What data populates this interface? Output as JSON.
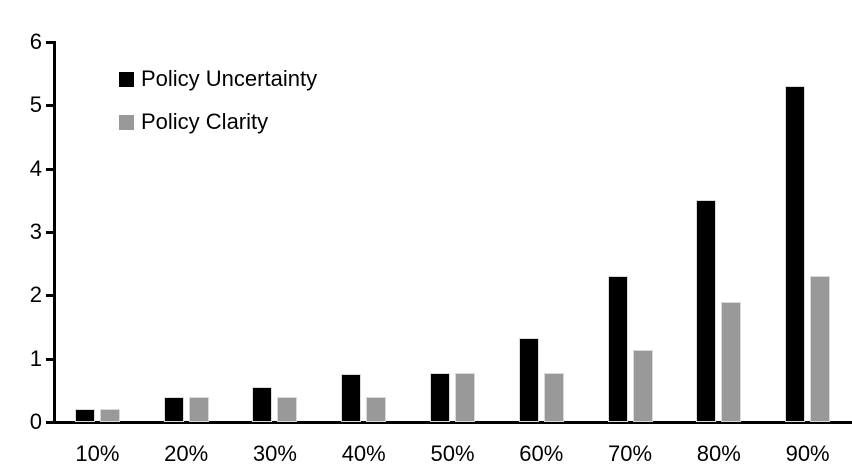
{
  "chart_data": {
    "type": "bar",
    "title": "",
    "xlabel": "",
    "ylabel": "",
    "categories": [
      "10%",
      "20%",
      "30%",
      "40%",
      "50%",
      "60%",
      "70%",
      "80%",
      "90%"
    ],
    "series": [
      {
        "name": "Policy Uncertainty",
        "color": "#000000",
        "values": [
          0.2,
          0.4,
          0.55,
          0.76,
          0.78,
          1.33,
          2.3,
          3.5,
          5.3
        ]
      },
      {
        "name": "Policy Clarity",
        "color": "#999999",
        "values": [
          0.2,
          0.4,
          0.4,
          0.4,
          0.78,
          0.77,
          1.13,
          1.9,
          2.3
        ]
      }
    ],
    "ylim": [
      0,
      6
    ],
    "yticks": [
      0,
      1,
      2,
      3,
      4,
      5,
      6
    ],
    "grid": false,
    "legend_position": "upper-left",
    "axis_color": "#000000",
    "background": "#ffffff"
  }
}
